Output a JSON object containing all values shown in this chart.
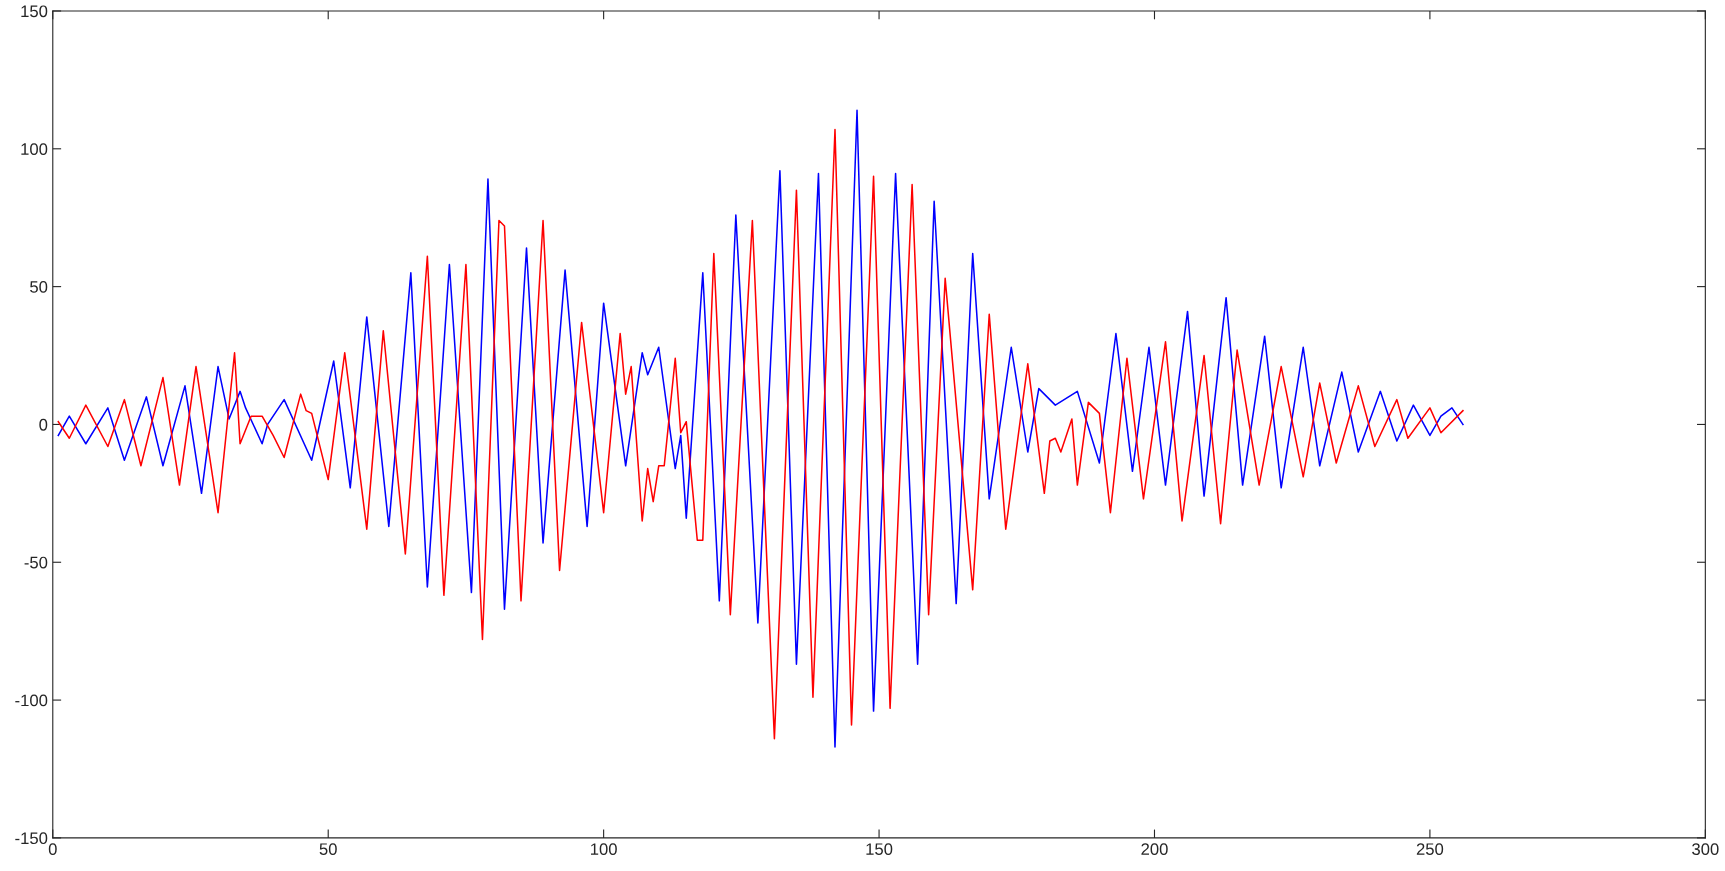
{
  "chart_data": {
    "type": "line",
    "xlim": [
      0,
      300
    ],
    "ylim": [
      -150,
      150
    ],
    "xticks": [
      0,
      50,
      100,
      150,
      200,
      250,
      300
    ],
    "yticks": [
      -150,
      -100,
      -50,
      0,
      50,
      100,
      150
    ],
    "grid": false,
    "marker": "none",
    "line_style": "solid",
    "series": [
      {
        "color": "#0000ff",
        "x": [
          1,
          3,
          6,
          10,
          13,
          17,
          20,
          24,
          27,
          30,
          32,
          34,
          35,
          38,
          39,
          42,
          47,
          51,
          54,
          57,
          61,
          65,
          68,
          72,
          76,
          79,
          82,
          86,
          89,
          93,
          97,
          100,
          104,
          107,
          108,
          110,
          113,
          114,
          115,
          118,
          121,
          124,
          128,
          132,
          135,
          139,
          142,
          146,
          149,
          153,
          157,
          160,
          164,
          167,
          170,
          174,
          177,
          179,
          182,
          186,
          190,
          193,
          196,
          199,
          202,
          206,
          209,
          213,
          216,
          220,
          223,
          227,
          230,
          234,
          237,
          241,
          244,
          247,
          250,
          252,
          254,
          256
        ],
        "values": [
          -4,
          3,
          -7,
          6,
          -13,
          10,
          -15,
          14,
          -25,
          21,
          2,
          12,
          6,
          -7,
          0,
          9,
          -13,
          23,
          -23,
          39,
          -37,
          55,
          -59,
          58,
          -61,
          89,
          -67,
          64,
          -43,
          56,
          -37,
          44,
          -15,
          26,
          18,
          28,
          -16,
          -4,
          -34,
          55,
          -64,
          76,
          -72,
          92,
          -87,
          91,
          -117,
          114,
          -104,
          91,
          -87,
          81,
          -65,
          62,
          -27,
          28,
          -10,
          13,
          7,
          12,
          -14,
          33,
          -17,
          28,
          -22,
          41,
          -26,
          46,
          -22,
          32,
          -23,
          28,
          -15,
          19,
          -10,
          12,
          -6,
          7,
          -4,
          3,
          6,
          0
        ]
      },
      {
        "color": "#ff0000",
        "x": [
          1,
          3,
          6,
          10,
          13,
          16,
          20,
          23,
          26,
          30,
          33,
          34,
          36,
          38,
          40,
          42,
          45,
          46,
          47,
          50,
          53,
          57,
          60,
          64,
          68,
          71,
          75,
          78,
          81,
          82,
          85,
          89,
          92,
          96,
          100,
          103,
          104,
          105,
          107,
          108,
          109,
          110,
          111,
          113,
          114,
          115,
          117,
          118,
          120,
          123,
          127,
          131,
          135,
          138,
          142,
          145,
          149,
          152,
          156,
          159,
          162,
          167,
          170,
          173,
          177,
          180,
          181,
          182,
          183,
          185,
          186,
          188,
          190,
          192,
          195,
          198,
          202,
          205,
          209,
          212,
          215,
          219,
          223,
          227,
          230,
          233,
          237,
          240,
          244,
          246,
          250,
          252,
          256
        ],
        "values": [
          1,
          -5,
          7,
          -8,
          9,
          -15,
          17,
          -22,
          21,
          -32,
          26,
          -7,
          3,
          3,
          -4,
          -12,
          11,
          5,
          4,
          -20,
          26,
          -38,
          34,
          -47,
          61,
          -62,
          58,
          -78,
          74,
          72,
          -64,
          74,
          -53,
          37,
          -32,
          33,
          11,
          21,
          -35,
          -16,
          -28,
          -15,
          -15,
          24,
          -3,
          1,
          -42,
          -42,
          62,
          -69,
          74,
          -114,
          85,
          -99,
          107,
          -109,
          90,
          -103,
          87,
          -69,
          53,
          -60,
          40,
          -38,
          22,
          -25,
          -6,
          -5,
          -10,
          2,
          -22,
          8,
          4,
          -32,
          24,
          -27,
          30,
          -35,
          25,
          -36,
          27,
          -22,
          21,
          -19,
          15,
          -14,
          14,
          -8,
          9,
          -5,
          6,
          -3,
          5
        ]
      }
    ]
  }
}
